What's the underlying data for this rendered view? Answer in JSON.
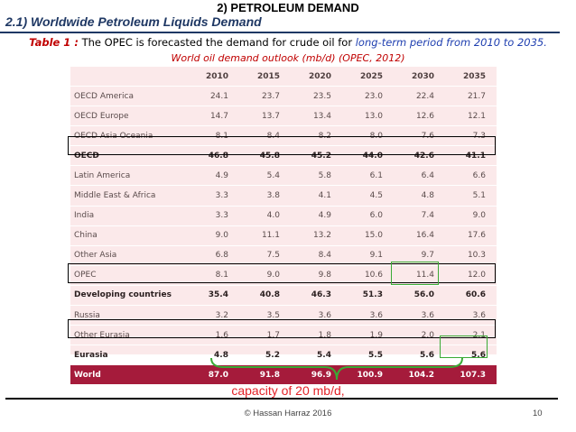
{
  "header": {
    "section": "2) PETROLEUM DEMAND",
    "subtitle": "2.1) Worldwide Petroleum Liquids Demand"
  },
  "caption": {
    "label": "Table 1 :",
    "text": " The OPEC is forecasted the demand for crude oil for ",
    "emphasis": "long-term period from 2010 to 2035.",
    "line2": "World oil demand outlook (mb/d) (OPEC, 2012)"
  },
  "table": {
    "columns": [
      "",
      "2010",
      "2015",
      "2020",
      "2025",
      "2030",
      "2035"
    ],
    "rows": [
      {
        "name": "OECD America",
        "values": [
          "24.1",
          "23.7",
          "23.5",
          "23.0",
          "22.4",
          "21.7"
        ]
      },
      {
        "name": "OECD Europe",
        "values": [
          "14.7",
          "13.7",
          "13.4",
          "13.0",
          "12.6",
          "12.1"
        ]
      },
      {
        "name": "OECD Asia Oceania",
        "values": [
          "8.1",
          "8.4",
          "8.2",
          "8.0",
          "7.6",
          "7.3"
        ]
      },
      {
        "name": "OECD",
        "values": [
          "46.8",
          "45.8",
          "45.2",
          "44.0",
          "42.6",
          "41.1"
        ]
      },
      {
        "name": "Latin America",
        "values": [
          "4.9",
          "5.4",
          "5.8",
          "6.1",
          "6.4",
          "6.6"
        ]
      },
      {
        "name": "Middle East & Africa",
        "values": [
          "3.3",
          "3.8",
          "4.1",
          "4.5",
          "4.8",
          "5.1"
        ]
      },
      {
        "name": "India",
        "values": [
          "3.3",
          "4.0",
          "4.9",
          "6.0",
          "7.4",
          "9.0"
        ]
      },
      {
        "name": "China",
        "values": [
          "9.0",
          "11.1",
          "13.2",
          "15.0",
          "16.4",
          "17.6"
        ]
      },
      {
        "name": "Other Asia",
        "values": [
          "6.8",
          "7.5",
          "8.4",
          "9.1",
          "9.7",
          "10.3"
        ]
      },
      {
        "name": "OPEC",
        "values": [
          "8.1",
          "9.0",
          "9.8",
          "10.6",
          "11.4",
          "12.0"
        ]
      },
      {
        "name": "Developing countries",
        "values": [
          "35.4",
          "40.8",
          "46.3",
          "51.3",
          "56.0",
          "60.6"
        ]
      },
      {
        "name": "Russia",
        "values": [
          "3.2",
          "3.5",
          "3.6",
          "3.6",
          "3.6",
          "3.6"
        ]
      },
      {
        "name": "Other Eurasia",
        "values": [
          "1.6",
          "1.7",
          "1.8",
          "1.9",
          "2.0",
          "2.1"
        ]
      },
      {
        "name": "Eurasia",
        "values": [
          "4.8",
          "5.2",
          "5.4",
          "5.5",
          "5.6",
          "5.6"
        ]
      },
      {
        "name": "World",
        "values": [
          "87.0",
          "91.8",
          "96.9",
          "100.9",
          "104.2",
          "107.3"
        ]
      }
    ]
  },
  "annotation": "capacity of 20 mb/d,",
  "footer": {
    "copyright": "© Hassan Harraz 2016",
    "page": "10"
  }
}
